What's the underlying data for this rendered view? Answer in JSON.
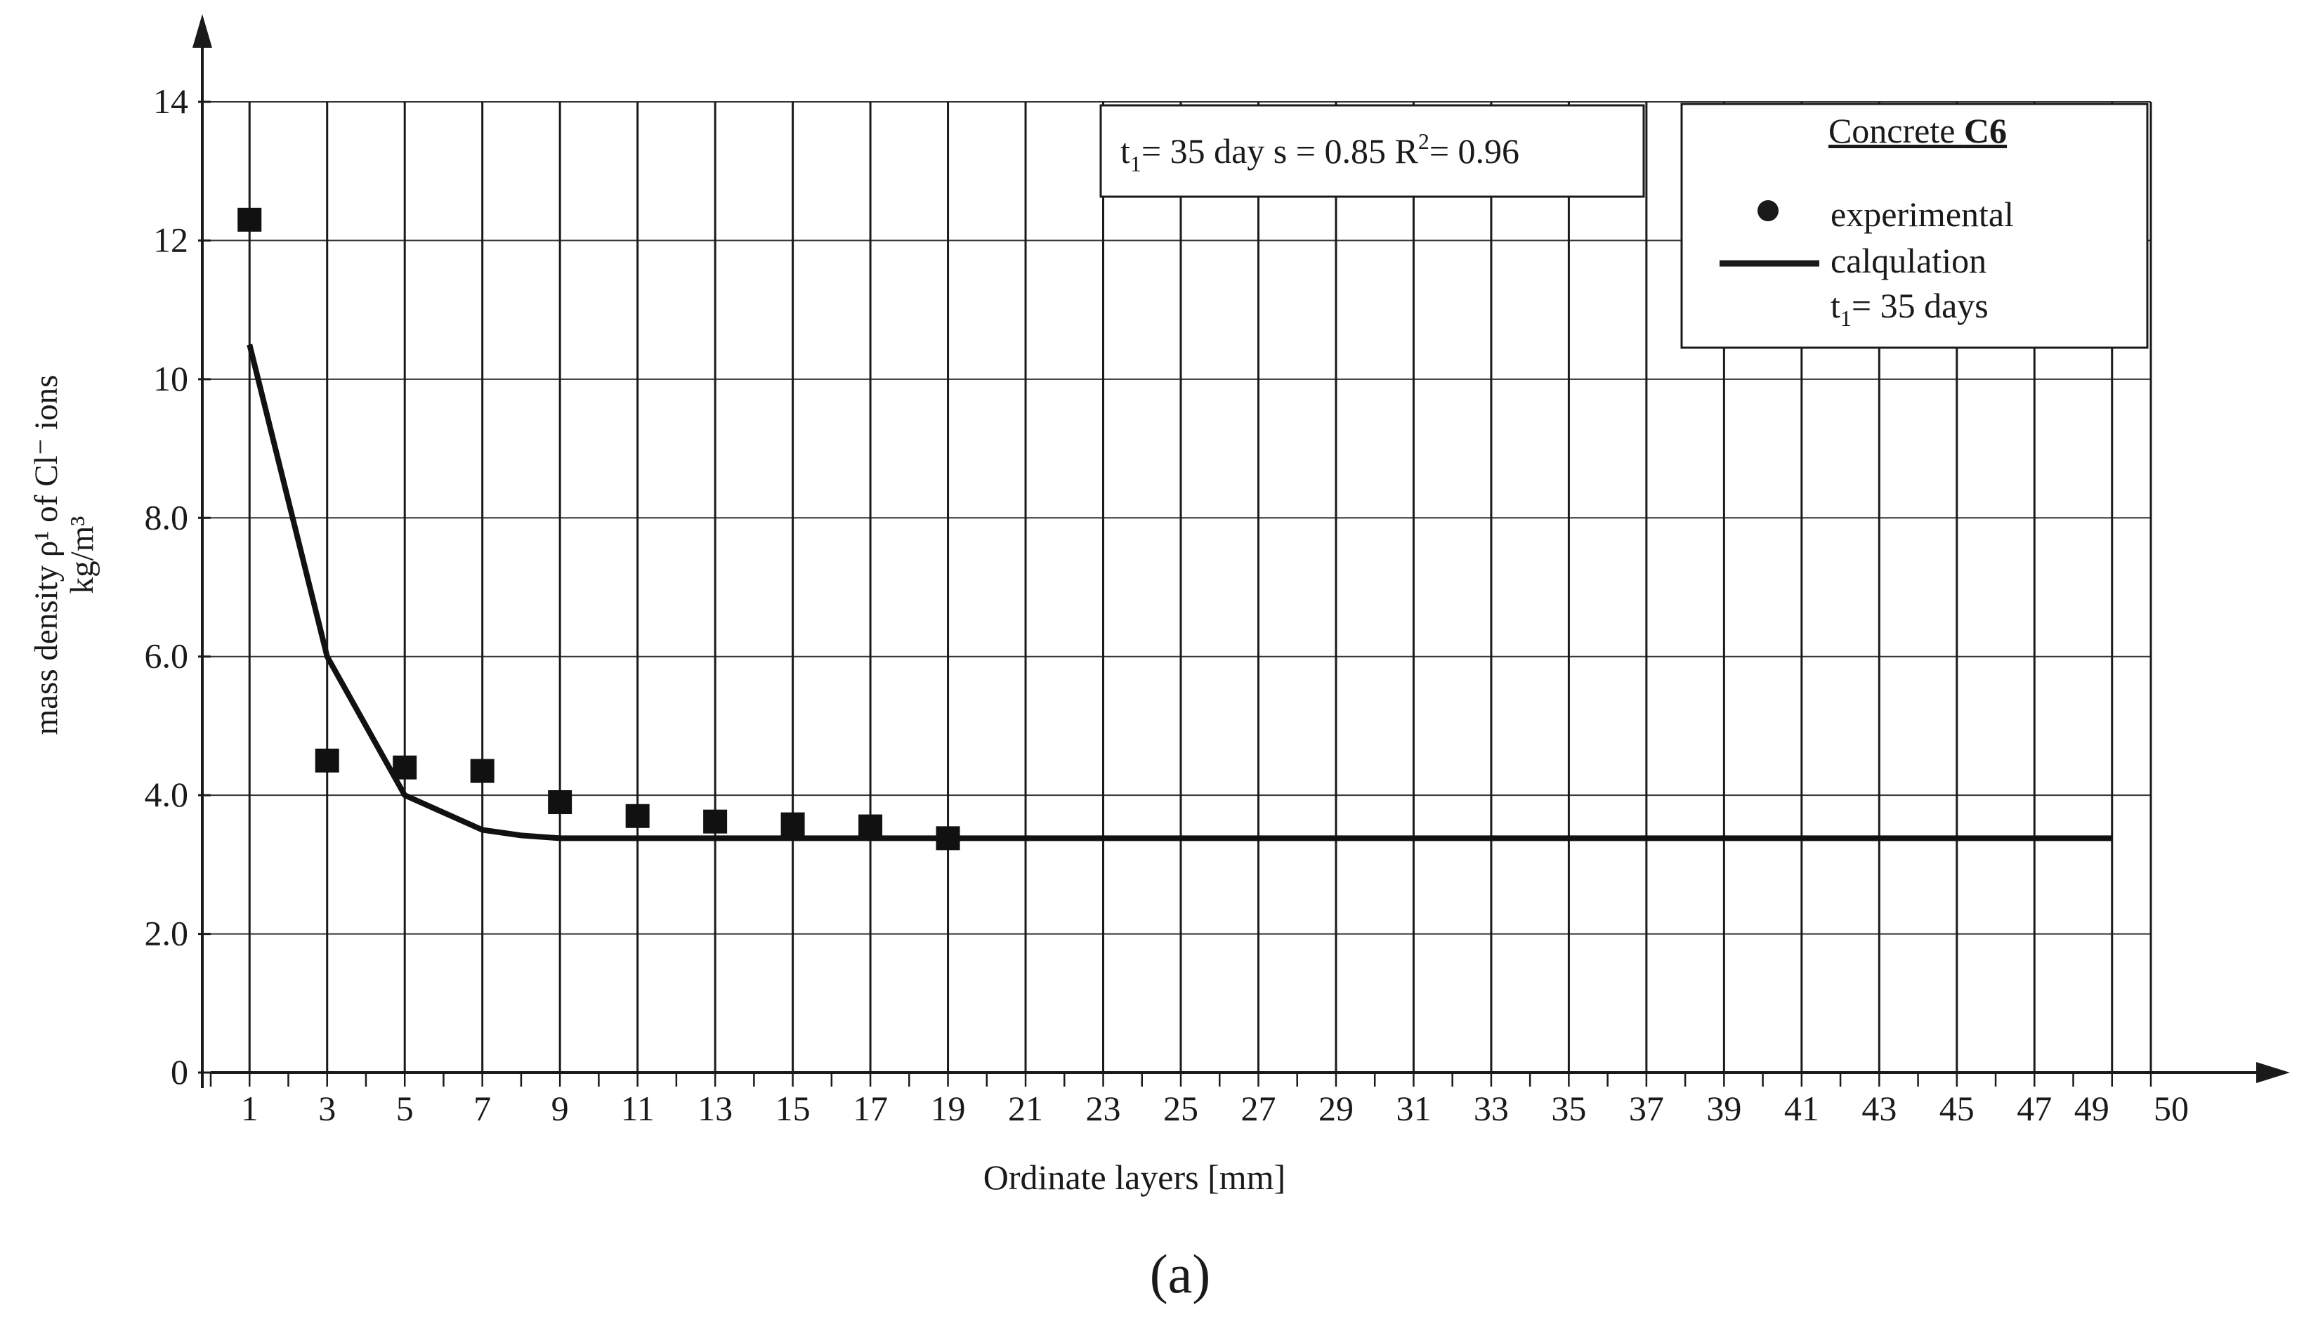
{
  "chart_data": {
    "type": "line",
    "title": "",
    "xlabel": "Ordinate layers [mm]",
    "ylabel_line1": "mass density ρ¹ of  Cl⁻ ions",
    "ylabel_line2": "kg/m³",
    "x_ticks": [
      "1",
      "3",
      "5",
      "7",
      "9",
      "11",
      "13",
      "15",
      "17",
      "19",
      "21",
      "23",
      "25",
      "27",
      "29",
      "31",
      "33",
      "35",
      "37",
      "39",
      "41",
      "43",
      "45",
      "47",
      "49",
      "50"
    ],
    "y_ticks": [
      "0",
      "2.0",
      "4.0",
      "6.0",
      "8.0",
      "10",
      "12",
      "14"
    ],
    "xlim": [
      0,
      50
    ],
    "ylim": [
      0,
      14
    ],
    "grid": true,
    "series": [
      {
        "name": "experimental",
        "marker": "square",
        "x": [
          1,
          3,
          5,
          7,
          9,
          11,
          13,
          15,
          17,
          19
        ],
        "y": [
          12.3,
          4.5,
          4.4,
          4.35,
          3.9,
          3.7,
          3.62,
          3.58,
          3.55,
          3.38
        ]
      },
      {
        "name": "calqulation",
        "marker": "line",
        "x": [
          1,
          3,
          5,
          7,
          8,
          9,
          12,
          49
        ],
        "y": [
          10.5,
          6.0,
          4.0,
          3.5,
          3.42,
          3.38,
          3.38,
          3.38
        ]
      }
    ],
    "annotation": {
      "t_prefix": "t",
      "t_sub": "1",
      "t_rest": "= 35 day  s = 0.85  R",
      "r_sup": "2",
      "r_rest": "= 0.96"
    },
    "legend": {
      "position": "top-right",
      "title_prefix": "Concrete ",
      "title_bold": "C6",
      "item_experimental": "experimental",
      "item_calc": "calqulation",
      "item_calc_sub_prefix": "t",
      "item_calc_sub_index": "1",
      "item_calc_sub_rest": "= 35 days"
    },
    "panel_label": "(a)"
  }
}
